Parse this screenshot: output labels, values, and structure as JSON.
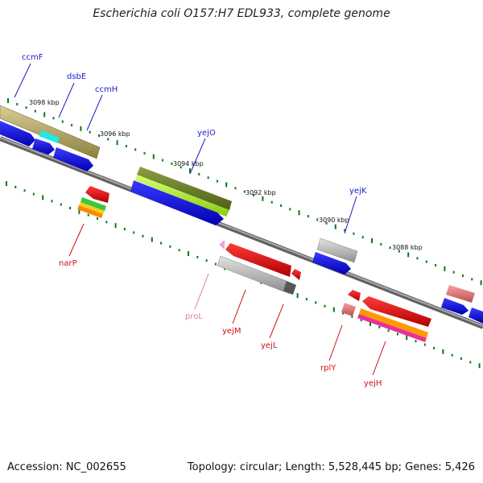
{
  "title": "Escherichia coli O157:H7 EDL933, complete genome",
  "accession": "Accession: NC_002655",
  "summary": "Topology: circular; Length: 5,528,445 bp; Genes: 5,426",
  "kbp_labels": [
    "3098 kbp",
    "3096 kbp",
    "3094 kbp",
    "3092 kbp",
    "3090 kbp",
    "3088 kbp"
  ],
  "gene_labels": {
    "ccmF": "ccmF",
    "dsbE": "dsbE",
    "ccmH": "ccmH",
    "yejO": "yejO",
    "yejK": "yejK",
    "narP": "narP",
    "proL": "proL",
    "yejM": "yejM",
    "yejL": "yejL",
    "rplY": "rplY",
    "yejH": "yejH"
  },
  "colors": {
    "forward_label": "#1a1acc",
    "reverse_label": "#cc1111",
    "trna_label": "#e87aa8",
    "backbone": "#808080",
    "tick": "#0a7a1a"
  }
}
